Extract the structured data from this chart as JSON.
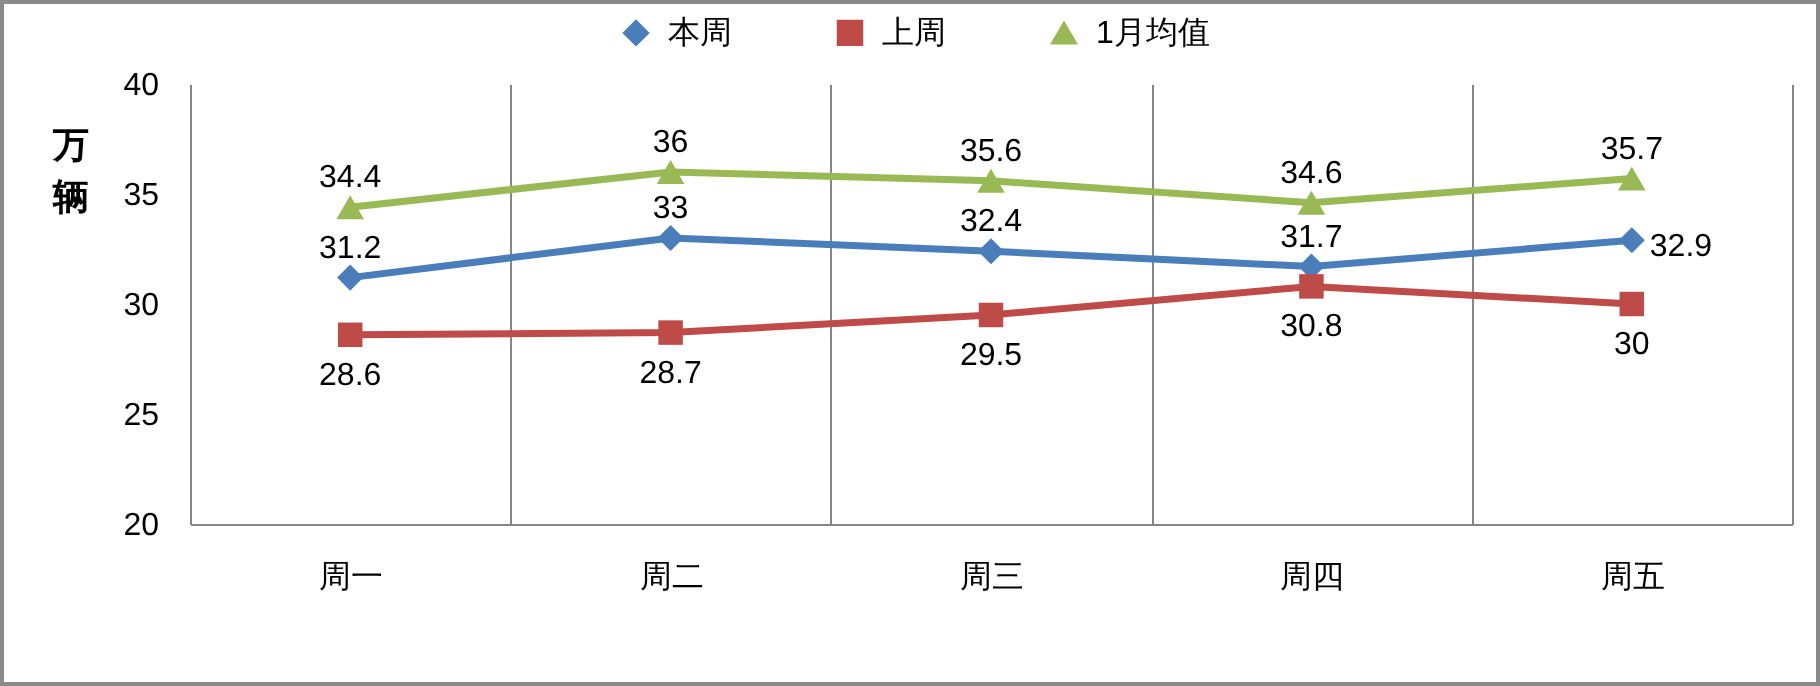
{
  "chart_data": {
    "type": "line",
    "categories": [
      "周一",
      "周二",
      "周三",
      "周四",
      "周五"
    ],
    "ylabel": "万辆",
    "ylim": [
      20,
      40
    ],
    "yticks": [
      20,
      25,
      30,
      35,
      40
    ],
    "grid": "x",
    "legend": "top",
    "data_labels": true,
    "series": [
      {
        "name": "本周",
        "color": "#4a7ebb",
        "marker": "diamond",
        "values": [
          31.2,
          33,
          32.4,
          31.7,
          32.9
        ]
      },
      {
        "name": "上周",
        "color": "#be4b48",
        "marker": "square",
        "values": [
          28.6,
          28.7,
          29.5,
          30.8,
          30
        ]
      },
      {
        "name": "1月均值",
        "color": "#98b954",
        "marker": "triangle",
        "values": [
          34.4,
          36,
          35.6,
          34.6,
          35.7
        ]
      }
    ]
  }
}
